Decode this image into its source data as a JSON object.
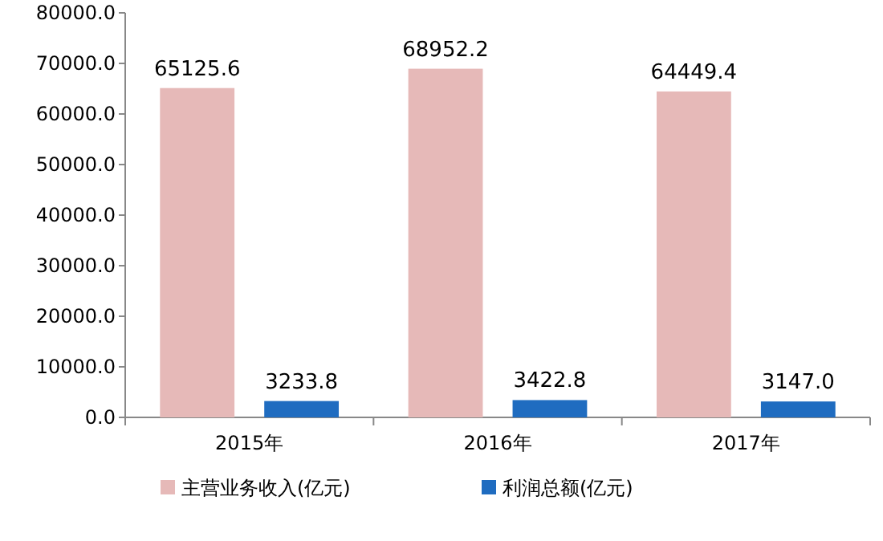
{
  "chart_data": {
    "type": "bar",
    "categories": [
      "2015年",
      "2016年",
      "2017年"
    ],
    "series": [
      {
        "name": "主营业务收入(亿元)",
        "color": "#e6b9b8",
        "values": [
          65125.6,
          68952.2,
          64449.4
        ],
        "value_labels": [
          "65125.6",
          "68952.2",
          "64449.4"
        ]
      },
      {
        "name": "利润总额(亿元)",
        "color": "#1f6cc0",
        "values": [
          3233.8,
          3422.8,
          3147
        ],
        "value_labels": [
          "3233.8",
          "3422.8",
          "3147.0"
        ]
      }
    ],
    "ylim": [
      0,
      80000
    ],
    "yticks": [
      {
        "value": 0,
        "label": "0.0"
      },
      {
        "value": 10000,
        "label": "10000.0"
      },
      {
        "value": 20000,
        "label": "20000.0"
      },
      {
        "value": 30000,
        "label": "30000.0"
      },
      {
        "value": 40000,
        "label": "40000.0"
      },
      {
        "value": 50000,
        "label": "50000.0"
      },
      {
        "value": 60000,
        "label": "60000.0"
      },
      {
        "value": 70000,
        "label": "70000.0"
      },
      {
        "value": 80000,
        "label": "80000.0"
      }
    ],
    "legend": "bottom",
    "grid": false
  }
}
